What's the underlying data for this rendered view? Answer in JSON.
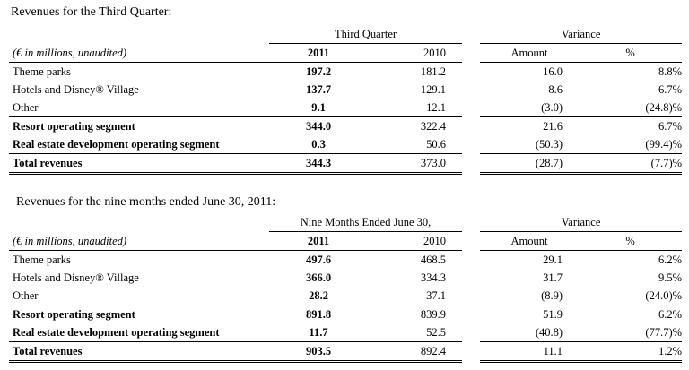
{
  "q3": {
    "title": "Revenues for the Third Quarter:",
    "period_header": "Third Quarter",
    "variance_header": "Variance",
    "units_label": "(€ in millions, unaudited)",
    "col_2011": "2011",
    "col_2010": "2010",
    "col_amount": "Amount",
    "col_pct": "%",
    "rows": [
      {
        "label": "Theme parks",
        "y2011": "197.2",
        "y2010": "181.2",
        "amount": "16.0",
        "pct": "8.8%"
      },
      {
        "label": "Hotels and Disney® Village",
        "y2011": "137.7",
        "y2010": "129.1",
        "amount": "8.6",
        "pct": "6.7%"
      },
      {
        "label": "Other",
        "y2011": "9.1",
        "y2010": "12.1",
        "amount": "(3.0)",
        "pct": "(24.8)%"
      },
      {
        "label": "Resort operating segment",
        "y2011": "344.0",
        "y2010": "322.4",
        "amount": "21.6",
        "pct": "6.7%"
      },
      {
        "label": "Real estate development operating segment",
        "y2011": "0.3",
        "y2010": "50.6",
        "amount": "(50.3)",
        "pct": "(99.4)%"
      },
      {
        "label": "Total revenues",
        "y2011": "344.3",
        "y2010": "373.0",
        "amount": "(28.7)",
        "pct": "(7.7)%"
      }
    ]
  },
  "nine": {
    "title": "Revenues for the nine months ended June 30, 2011:",
    "period_header": "Nine Months Ended June 30,",
    "variance_header": "Variance",
    "units_label": "(€ in millions, unaudited)",
    "col_2011": "2011",
    "col_2010": "2010",
    "col_amount": "Amount",
    "col_pct": "%",
    "rows": [
      {
        "label": "Theme parks",
        "y2011": "497.6",
        "y2010": "468.5",
        "amount": "29.1",
        "pct": "6.2%"
      },
      {
        "label": "Hotels and Disney® Village",
        "y2011": "366.0",
        "y2010": "334.3",
        "amount": "31.7",
        "pct": "9.5%"
      },
      {
        "label": "Other",
        "y2011": "28.2",
        "y2010": "37.1",
        "amount": "(8.9)",
        "pct": "(24.0)%"
      },
      {
        "label": "Resort operating segment",
        "y2011": "891.8",
        "y2010": "839.9",
        "amount": "51.9",
        "pct": "6.2%"
      },
      {
        "label": "Real estate development operating segment",
        "y2011": "11.7",
        "y2010": "52.5",
        "amount": "(40.8)",
        "pct": "(77.7)%"
      },
      {
        "label": "Total revenues",
        "y2011": "903.5",
        "y2010": "892.4",
        "amount": "11.1",
        "pct": "1.2%"
      }
    ]
  }
}
